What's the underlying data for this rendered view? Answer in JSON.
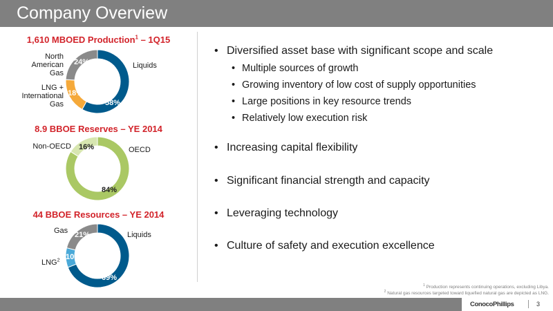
{
  "header": {
    "title": "Company Overview"
  },
  "colors": {
    "liquids": "#005a8c",
    "gas": "#8a8a8a",
    "lng": "#f5a93a",
    "lng_resources": "#4aa9d8",
    "oecd": "#aac864",
    "non_oecd": "#d7e6b0",
    "title_red": "#d2232a"
  },
  "charts": [
    {
      "title": "1,610 MBOED Production",
      "title_sup": "1",
      "title_suffix": " – 1Q15",
      "slices": [
        {
          "name": "Liquids",
          "value": 58,
          "label": "58%",
          "color": "#005a8c"
        },
        {
          "name": "LNG + International Gas",
          "value": 18,
          "label": "18%",
          "color": "#f5a93a"
        },
        {
          "name": "North American Gas",
          "value": 24,
          "label": "24%",
          "color": "#8a8a8a"
        }
      ],
      "labels": {
        "liquids": "Liquids",
        "lng_intl_line1": "LNG +",
        "lng_intl_line2": "International",
        "lng_intl_line3": "Gas",
        "na_gas_line1": "North",
        "na_gas_line2": "American",
        "na_gas_line3": "Gas"
      }
    },
    {
      "title": "8.9 BBOE Reserves – YE 2014",
      "slices": [
        {
          "name": "OECD",
          "value": 84,
          "label": "84%",
          "color": "#aac864"
        },
        {
          "name": "Non-OECD",
          "value": 16,
          "label": "16%",
          "color": "#d7e6b0"
        }
      ],
      "labels": {
        "oecd": "OECD",
        "non_oecd": "Non-OECD"
      }
    },
    {
      "title": "44 BBOE Resources – YE 2014",
      "slices": [
        {
          "name": "Liquids",
          "value": 69,
          "label": "69%",
          "color": "#005a8c"
        },
        {
          "name": "LNG",
          "value": 10,
          "label": "10%",
          "color": "#4aa9d8"
        },
        {
          "name": "Gas",
          "value": 21,
          "label": "21%",
          "color": "#8a8a8a"
        }
      ],
      "labels": {
        "liquids": "Liquids",
        "lng": "LNG",
        "lng_sup": "2",
        "gas": "Gas"
      }
    }
  ],
  "bullets": {
    "b1": "Diversified asset base with significant scope and scale",
    "b1_subs": [
      "Multiple sources of growth",
      "Growing inventory of low cost of supply opportunities",
      "Large positions in key resource trends",
      "Relatively low execution risk"
    ],
    "b2": "Increasing capital flexibility",
    "b3": "Significant financial strength and capacity",
    "b4": "Leveraging technology",
    "b5": "Culture of safety and execution excellence"
  },
  "footnotes": {
    "f1_num": "1",
    "f1": " Production represents continuing operations, excluding Libya.",
    "f2_num": "2",
    "f2": " Natural gas resources targeted toward liquefied natural gas are depicted as LNG."
  },
  "footer": {
    "logo": "ConocoPhillips",
    "page_number": "3"
  }
}
